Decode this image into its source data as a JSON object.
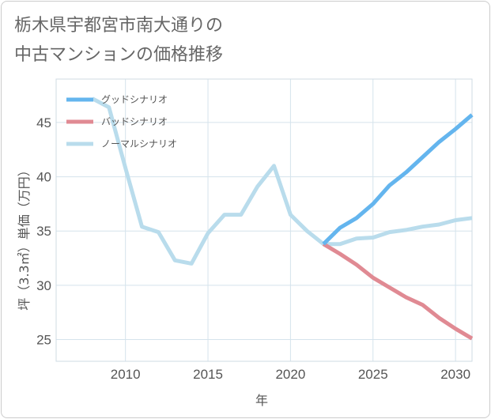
{
  "title": {
    "line1": "栃木県宇都宮市南大通りの",
    "line2": "中古マンションの価格推移"
  },
  "colors": {
    "good": "#64b5ee",
    "bad": "#e08a93",
    "normal": "#b9dcec",
    "grid": "#d5e3ec",
    "axis": "#555555"
  },
  "chart_data": {
    "type": "line",
    "xlabel": "年",
    "ylabel": "坪（3.3㎡）単価（万円）",
    "xlim": [
      2005.8,
      2031.0
    ],
    "ylim": [
      23,
      49
    ],
    "x_ticks": [
      2010,
      2015,
      2020,
      2025,
      2030
    ],
    "y_ticks": [
      25,
      30,
      35,
      40,
      45
    ],
    "grid": true,
    "legend_position": "top-left",
    "series": [
      {
        "name": "グッドシナリオ",
        "key": "good",
        "x": [
          2022,
          2023,
          2024,
          2025,
          2026,
          2027,
          2028,
          2029,
          2030,
          2031
        ],
        "y": [
          33.8,
          35.3,
          36.2,
          37.5,
          39.2,
          40.4,
          41.8,
          43.2,
          44.4,
          45.7
        ]
      },
      {
        "name": "バッドシナリオ",
        "key": "bad",
        "x": [
          2022,
          2023,
          2024,
          2025,
          2026,
          2027,
          2028,
          2029,
          2030,
          2031
        ],
        "y": [
          33.8,
          32.9,
          31.9,
          30.7,
          29.8,
          28.9,
          28.2,
          27.0,
          26.0,
          25.1
        ]
      },
      {
        "name": "ノーマルシナリオ",
        "key": "normal",
        "x": [
          2008,
          2009,
          2010,
          2011,
          2012,
          2013,
          2014,
          2015,
          2016,
          2017,
          2018,
          2019,
          2020,
          2021,
          2022,
          2023,
          2024,
          2025,
          2026,
          2027,
          2028,
          2029,
          2030,
          2031
        ],
        "y": [
          47.2,
          46.4,
          40.8,
          35.4,
          34.9,
          32.3,
          32.0,
          34.8,
          36.5,
          36.5,
          39.1,
          41.0,
          36.5,
          35.0,
          33.8,
          33.8,
          34.3,
          34.4,
          34.9,
          35.1,
          35.4,
          35.6,
          36.0,
          36.2
        ]
      }
    ]
  }
}
